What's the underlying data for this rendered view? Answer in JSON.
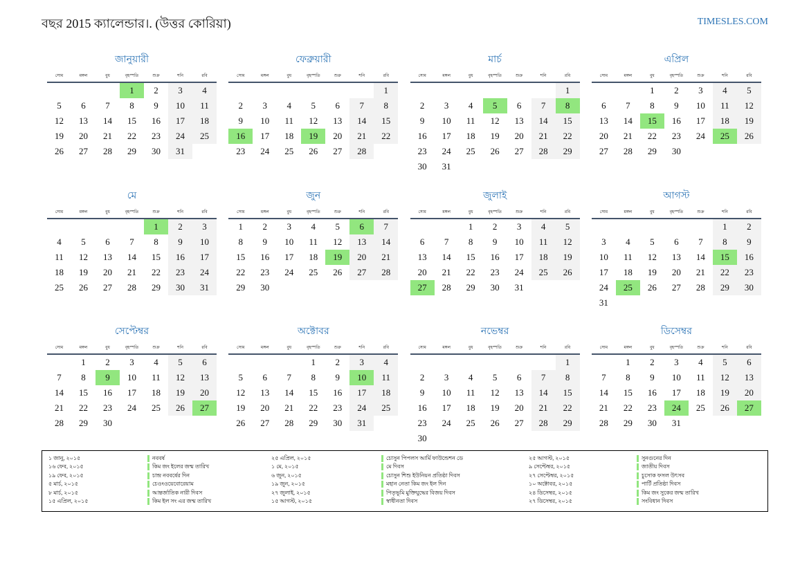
{
  "header": {
    "title": "বছর 2015 ক্যালেন্ডার।. (উত্তর কোরিয়া)",
    "site": "TIMESLES.COM"
  },
  "weekdays": [
    "সোম",
    "মঙ্গল",
    "বুধ",
    "বৃহস্পতি",
    "শুক্র",
    "শনি",
    "রবি"
  ],
  "months": [
    {
      "name": "জানুয়ারী",
      "highlight": [
        1
      ],
      "weeks": [
        [
          null,
          null,
          null,
          1,
          2,
          3,
          4
        ],
        [
          5,
          6,
          7,
          8,
          9,
          10,
          11
        ],
        [
          12,
          13,
          14,
          15,
          16,
          17,
          18
        ],
        [
          19,
          20,
          21,
          22,
          23,
          24,
          25
        ],
        [
          26,
          27,
          28,
          29,
          30,
          31
        ]
      ]
    },
    {
      "name": "ফেব্রুয়ারী",
      "highlight": [
        16,
        19
      ],
      "weeks": [
        [
          null,
          null,
          null,
          null,
          null,
          null,
          1
        ],
        [
          2,
          3,
          4,
          5,
          6,
          7,
          8
        ],
        [
          9,
          10,
          11,
          12,
          13,
          14,
          15
        ],
        [
          16,
          17,
          18,
          19,
          20,
          21,
          22
        ],
        [
          23,
          24,
          25,
          26,
          27,
          28
        ]
      ]
    },
    {
      "name": "মার্চ",
      "highlight": [
        5,
        8
      ],
      "weeks": [
        [
          null,
          null,
          null,
          null,
          null,
          null,
          1
        ],
        [
          2,
          3,
          4,
          5,
          6,
          7,
          8
        ],
        [
          9,
          10,
          11,
          12,
          13,
          14,
          15
        ],
        [
          16,
          17,
          18,
          19,
          20,
          21,
          22
        ],
        [
          23,
          24,
          25,
          26,
          27,
          28,
          29
        ],
        [
          30,
          31
        ]
      ]
    },
    {
      "name": "এপ্রিল",
      "highlight": [
        15,
        25
      ],
      "weeks": [
        [
          null,
          null,
          1,
          2,
          3,
          4,
          5
        ],
        [
          6,
          7,
          8,
          9,
          10,
          11,
          12
        ],
        [
          13,
          14,
          15,
          16,
          17,
          18,
          19
        ],
        [
          20,
          21,
          22,
          23,
          24,
          25,
          26
        ],
        [
          27,
          28,
          29,
          30
        ]
      ]
    },
    {
      "name": "মে",
      "highlight": [
        1
      ],
      "weeks": [
        [
          null,
          null,
          null,
          null,
          1,
          2,
          3
        ],
        [
          4,
          5,
          6,
          7,
          8,
          9,
          10
        ],
        [
          11,
          12,
          13,
          14,
          15,
          16,
          17
        ],
        [
          18,
          19,
          20,
          21,
          22,
          23,
          24
        ],
        [
          25,
          26,
          27,
          28,
          29,
          30,
          31
        ]
      ]
    },
    {
      "name": "জুন",
      "highlight": [
        6,
        19
      ],
      "weeks": [
        [
          1,
          2,
          3,
          4,
          5,
          6,
          7
        ],
        [
          8,
          9,
          10,
          11,
          12,
          13,
          14
        ],
        [
          15,
          16,
          17,
          18,
          19,
          20,
          21
        ],
        [
          22,
          23,
          24,
          25,
          26,
          27,
          28
        ],
        [
          29,
          30
        ]
      ]
    },
    {
      "name": "জুলাই",
      "highlight": [
        27
      ],
      "weeks": [
        [
          null,
          null,
          1,
          2,
          3,
          4,
          5
        ],
        [
          6,
          7,
          8,
          9,
          10,
          11,
          12
        ],
        [
          13,
          14,
          15,
          16,
          17,
          18,
          19
        ],
        [
          20,
          21,
          22,
          23,
          24,
          25,
          26
        ],
        [
          27,
          28,
          29,
          30,
          31
        ]
      ]
    },
    {
      "name": "আগস্ট",
      "highlight": [
        15,
        25
      ],
      "weeks": [
        [
          null,
          null,
          null,
          null,
          null,
          1,
          2
        ],
        [
          3,
          4,
          5,
          6,
          7,
          8,
          9
        ],
        [
          10,
          11,
          12,
          13,
          14,
          15,
          16
        ],
        [
          17,
          18,
          19,
          20,
          21,
          22,
          23
        ],
        [
          24,
          25,
          26,
          27,
          28,
          29,
          30
        ],
        [
          31
        ]
      ]
    },
    {
      "name": "সেপ্টেম্বর",
      "highlight": [
        9,
        27
      ],
      "weeks": [
        [
          null,
          1,
          2,
          3,
          4,
          5,
          6
        ],
        [
          7,
          8,
          9,
          10,
          11,
          12,
          13
        ],
        [
          14,
          15,
          16,
          17,
          18,
          19,
          20
        ],
        [
          21,
          22,
          23,
          24,
          25,
          26,
          27
        ],
        [
          28,
          29,
          30
        ]
      ]
    },
    {
      "name": "অক্টোবর",
      "highlight": [
        10
      ],
      "weeks": [
        [
          null,
          null,
          null,
          1,
          2,
          3,
          4
        ],
        [
          5,
          6,
          7,
          8,
          9,
          10,
          11
        ],
        [
          12,
          13,
          14,
          15,
          16,
          17,
          18
        ],
        [
          19,
          20,
          21,
          22,
          23,
          24,
          25
        ],
        [
          26,
          27,
          28,
          29,
          30,
          31
        ]
      ]
    },
    {
      "name": "নভেম্বর",
      "highlight": [],
      "weeks": [
        [
          null,
          null,
          null,
          null,
          null,
          null,
          1
        ],
        [
          2,
          3,
          4,
          5,
          6,
          7,
          8
        ],
        [
          9,
          10,
          11,
          12,
          13,
          14,
          15
        ],
        [
          16,
          17,
          18,
          19,
          20,
          21,
          22
        ],
        [
          23,
          24,
          25,
          26,
          27,
          28,
          29
        ],
        [
          30
        ]
      ]
    },
    {
      "name": "ডিসেম্বর",
      "highlight": [
        24,
        27
      ],
      "weeks": [
        [
          null,
          1,
          2,
          3,
          4,
          5,
          6
        ],
        [
          7,
          8,
          9,
          10,
          11,
          12,
          13
        ],
        [
          14,
          15,
          16,
          17,
          18,
          19,
          20
        ],
        [
          21,
          22,
          23,
          24,
          25,
          26,
          27
        ],
        [
          28,
          29,
          30,
          31
        ]
      ]
    }
  ],
  "holidays": [
    [
      {
        "date": "১ জানু, ২০১৫",
        "name": "নববর্ষ"
      },
      {
        "date": "১৬ ফেব, ২০১৫",
        "name": "কিম জং ইলের জন্ম তারিখ"
      },
      {
        "date": "১৯ ফেব, ২০১৫",
        "name": "চান্দ্র নববর্ষের দিন"
      },
      {
        "date": "৫ মার্চ, ২০১৫",
        "name": "চেওংওয়েবোরেয়াম"
      },
      {
        "date": "৮ মার্চ, ২০১৫",
        "name": "আন্তর্জাতিক নারী দিবস"
      },
      {
        "date": "১৫ এপ্রিল, ২০১৫",
        "name": "কিম ইল সং এর জন্ম তারিখ"
      }
    ],
    [
      {
        "date": "২৫ এপ্রিল, ২০১৫",
        "name": "চোসুন পিপলস আর্মি ফাউন্ডেশন ডে"
      },
      {
        "date": "১ মে, ২০১৫",
        "name": "মে দিবস"
      },
      {
        "date": "৬ জুন, ২০১৫",
        "name": "চোসুন শিশু ইউনিয়ন প্রতিষ্ঠা দিবস"
      },
      {
        "date": "১৯ জুন, ২০১৫",
        "name": "মহান নেতা কিম জং ইল দিন"
      },
      {
        "date": "২৭ জুলাই, ২০১৫",
        "name": "পিতৃভূমি মুক্তিযুদ্ধের বিজয় দিবস"
      },
      {
        "date": "১৫ আগস্ট, ২০১৫",
        "name": "স্বাধীনতা দিবস"
      }
    ],
    [
      {
        "date": "২৫ আগস্ট, ২০১৫",
        "name": "সুনগুনের দিন"
      },
      {
        "date": "৯ সেপ্টেম্বর, ২০১৫",
        "name": "জাতীয় দিবস"
      },
      {
        "date": "২৭ সেপ্টেম্বর, ২০১৫",
        "name": "চুসোক ফসল উৎসব"
      },
      {
        "date": "১০ অক্টোবর, ২০১৫",
        "name": "পার্টি প্রতিষ্ঠা দিবস"
      },
      {
        "date": "২৪ ডিসেম্বর, ২০১৫",
        "name": "কিম জং সুকের জন্ম তারিখ"
      },
      {
        "date": "২৭ ডিসেম্বর, ২০১৫",
        "name": "সংবিধান দিবস"
      }
    ]
  ]
}
